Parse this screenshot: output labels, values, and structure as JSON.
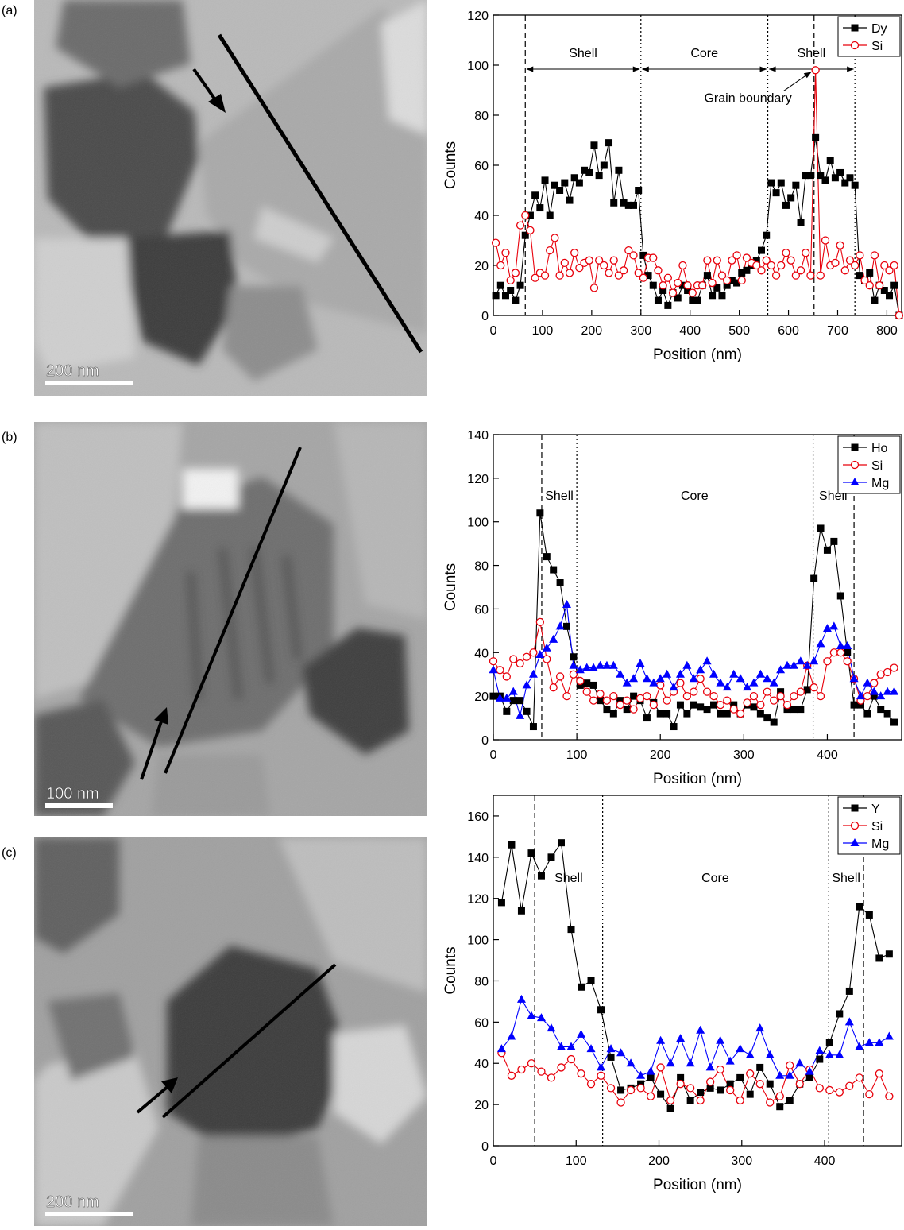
{
  "panel_labels": [
    "(a)",
    "(b)",
    "(c)"
  ],
  "scale_bars": [
    "200 nm",
    "100 nm",
    "200 nm"
  ],
  "chart_data": [
    {
      "type": "line",
      "xlabel": "Position (nm)",
      "ylabel": "Counts",
      "xlim": [
        0,
        830
      ],
      "ylim": [
        0,
        120
      ],
      "xticks": [
        0,
        100,
        200,
        300,
        400,
        500,
        600,
        700,
        800
      ],
      "yticks": [
        0,
        20,
        40,
        60,
        80,
        100,
        120
      ],
      "legend": "upper right",
      "x": [
        5,
        15,
        25,
        35,
        45,
        55,
        65,
        75,
        85,
        95,
        105,
        115,
        125,
        135,
        145,
        155,
        165,
        175,
        185,
        195,
        205,
        215,
        225,
        235,
        245,
        255,
        265,
        275,
        285,
        295,
        305,
        315,
        325,
        335,
        345,
        355,
        365,
        375,
        385,
        395,
        405,
        415,
        425,
        435,
        445,
        455,
        465,
        475,
        485,
        495,
        505,
        515,
        525,
        535,
        545,
        555,
        565,
        575,
        585,
        595,
        605,
        615,
        625,
        635,
        645,
        655,
        665,
        675,
        685,
        695,
        705,
        715,
        725,
        735,
        745,
        755,
        765,
        775,
        785,
        795,
        805,
        815,
        825
      ],
      "series": [
        {
          "name": "Dy",
          "color": "#000000",
          "marker": "square",
          "values": [
            8,
            12,
            8,
            10,
            6,
            12,
            32,
            40,
            48,
            43,
            54,
            40,
            52,
            50,
            53,
            46,
            55,
            53,
            58,
            57,
            68,
            56,
            60,
            69,
            45,
            58,
            45,
            44,
            44,
            50,
            24,
            16,
            12,
            6,
            10,
            4,
            9,
            7,
            12,
            10,
            6,
            6,
            12,
            16,
            8,
            11,
            8,
            12,
            14,
            13,
            17,
            18,
            20,
            22,
            26,
            32,
            53,
            49,
            53,
            44,
            47,
            52,
            37,
            56,
            56,
            71,
            56,
            54,
            62,
            55,
            57,
            53,
            55,
            52,
            16,
            14,
            17,
            6,
            12,
            10,
            8,
            12,
            0
          ]
        },
        {
          "name": "Si",
          "color": "#e8000b",
          "marker": "circle-open",
          "values": [
            29,
            20,
            25,
            14,
            17,
            36,
            40,
            34,
            15,
            17,
            16,
            26,
            31,
            16,
            21,
            17,
            25,
            19,
            21,
            22,
            11,
            22,
            20,
            17,
            22,
            16,
            18,
            26,
            24,
            17,
            15,
            23,
            23,
            18,
            12,
            15,
            9,
            13,
            20,
            12,
            9,
            12,
            12,
            22,
            13,
            22,
            16,
            14,
            22,
            24,
            14,
            23,
            21,
            20,
            18,
            22,
            20,
            16,
            20,
            25,
            22,
            16,
            18,
            25,
            16,
            98,
            16,
            30,
            20,
            21,
            28,
            18,
            22,
            20,
            24,
            14,
            12,
            24,
            12,
            20,
            18,
            20,
            0
          ]
        }
      ],
      "vlines": [
        {
          "x": 65,
          "style": "dashed"
        },
        {
          "x": 300,
          "style": "dotted"
        },
        {
          "x": 558,
          "style": "dotted"
        },
        {
          "x": 652,
          "style": "dashed"
        },
        {
          "x": 735,
          "style": "dotted"
        }
      ],
      "regions": [
        {
          "label": "Shell",
          "from": 65,
          "to": 300
        },
        {
          "label": "Core",
          "from": 300,
          "to": 558
        },
        {
          "label": "Shell",
          "from": 558,
          "to": 735
        }
      ],
      "annotation": {
        "text": "Grain boundary",
        "x": 652,
        "y": 98
      }
    },
    {
      "type": "line",
      "xlabel": "Position (nm)",
      "ylabel": "Counts",
      "xlim": [
        0,
        489
      ],
      "ylim": [
        0,
        140
      ],
      "xticks": [
        0,
        100,
        200,
        300,
        400
      ],
      "yticks": [
        0,
        20,
        40,
        60,
        80,
        100,
        120,
        140
      ],
      "legend": "upper right",
      "x": [
        0,
        8,
        16,
        24,
        32,
        40,
        48,
        56,
        64,
        72,
        80,
        88,
        96,
        104,
        112,
        120,
        128,
        136,
        144,
        152,
        160,
        168,
        176,
        184,
        192,
        200,
        208,
        216,
        224,
        232,
        240,
        248,
        256,
        264,
        272,
        280,
        288,
        296,
        304,
        312,
        320,
        328,
        336,
        344,
        352,
        360,
        368,
        376,
        384,
        392,
        400,
        408,
        416,
        424,
        432,
        440,
        448,
        456,
        464,
        472,
        480
      ],
      "series": [
        {
          "name": "Ho",
          "color": "#000000",
          "marker": "square",
          "values": [
            20,
            20,
            13,
            18,
            18,
            13,
            6,
            104,
            84,
            78,
            72,
            52,
            38,
            25,
            26,
            25,
            18,
            14,
            12,
            18,
            14,
            20,
            18,
            10,
            17,
            12,
            12,
            6,
            16,
            12,
            16,
            15,
            14,
            16,
            12,
            12,
            16,
            12,
            16,
            15,
            12,
            10,
            8,
            22,
            14,
            14,
            14,
            23,
            74,
            97,
            87,
            91,
            66,
            40,
            16,
            16,
            12,
            20,
            14,
            12,
            8
          ]
        },
        {
          "name": "Si",
          "color": "#e8000b",
          "marker": "circle-open",
          "values": [
            36,
            32,
            29,
            37,
            35,
            38,
            40,
            54,
            37,
            24,
            29,
            20,
            30,
            27,
            22,
            18,
            21,
            18,
            20,
            16,
            18,
            14,
            19,
            20,
            16,
            25,
            18,
            22,
            26,
            20,
            22,
            28,
            22,
            20,
            16,
            18,
            14,
            12,
            17,
            20,
            16,
            22,
            18,
            20,
            16,
            20,
            22,
            34,
            24,
            20,
            36,
            40,
            40,
            36,
            28,
            18,
            20,
            26,
            30,
            31,
            33
          ]
        },
        {
          "name": "Mg",
          "color": "#0000ff",
          "marker": "triangle",
          "values": [
            32,
            19,
            19,
            22,
            11,
            25,
            30,
            39,
            42,
            46,
            52,
            62,
            34,
            32,
            33,
            33,
            34,
            34,
            34,
            30,
            26,
            28,
            35,
            28,
            26,
            28,
            30,
            24,
            30,
            34,
            28,
            32,
            36,
            30,
            26,
            24,
            30,
            28,
            24,
            26,
            30,
            28,
            26,
            32,
            34,
            34,
            36,
            34,
            36,
            44,
            51,
            52,
            43,
            43,
            28,
            20,
            26,
            22,
            20,
            22,
            22
          ]
        }
      ],
      "vlines": [
        {
          "x": 58,
          "style": "dashed"
        },
        {
          "x": 100,
          "style": "dotted"
        },
        {
          "x": 383,
          "style": "dotted"
        },
        {
          "x": 432,
          "style": "dashed"
        }
      ],
      "regions": [
        {
          "label": "Shell",
          "x": 79
        },
        {
          "label": "Core",
          "x": 241
        },
        {
          "label": "Shell",
          "x": 407
        }
      ]
    },
    {
      "type": "line",
      "xlabel": "Position (nm)",
      "ylabel": "Counts",
      "xlim": [
        0,
        493
      ],
      "ylim": [
        0,
        170
      ],
      "xticks": [
        0,
        100,
        200,
        300,
        400
      ],
      "yticks": [
        0,
        20,
        40,
        60,
        80,
        100,
        120,
        140,
        160
      ],
      "legend": "upper right",
      "x": [
        10,
        22,
        34,
        46,
        58,
        70,
        82,
        94,
        106,
        118,
        130,
        142,
        154,
        166,
        178,
        190,
        202,
        214,
        226,
        238,
        250,
        262,
        274,
        286,
        298,
        310,
        322,
        334,
        346,
        358,
        370,
        382,
        394,
        406,
        418,
        430,
        442,
        454,
        466,
        478
      ],
      "series": [
        {
          "name": "Y",
          "color": "#000000",
          "marker": "square",
          "values": [
            118,
            146,
            114,
            142,
            131,
            140,
            147,
            105,
            77,
            80,
            66,
            43,
            27,
            28,
            30,
            33,
            25,
            18,
            33,
            22,
            26,
            28,
            27,
            30,
            33,
            25,
            38,
            30,
            19,
            22,
            30,
            33,
            42,
            50,
            64,
            75,
            116,
            112,
            91,
            93
          ]
        },
        {
          "name": "Si",
          "color": "#e8000b",
          "marker": "circle-open",
          "values": [
            45,
            34,
            37,
            40,
            36,
            33,
            38,
            42,
            35,
            30,
            34,
            28,
            21,
            27,
            28,
            24,
            38,
            22,
            30,
            28,
            22,
            31,
            37,
            27,
            22,
            35,
            30,
            21,
            24,
            39,
            30,
            37,
            28,
            27,
            26,
            29,
            33,
            25,
            35,
            24
          ]
        },
        {
          "name": "Mg",
          "color": "#0000ff",
          "marker": "triangle",
          "values": [
            47,
            53,
            71,
            63,
            62,
            57,
            48,
            48,
            54,
            47,
            38,
            47,
            45,
            40,
            34,
            36,
            51,
            40,
            52,
            40,
            56,
            38,
            51,
            41,
            47,
            44,
            57,
            44,
            34,
            34,
            40,
            36,
            46,
            44,
            44,
            60,
            48,
            50,
            50,
            53
          ]
        }
      ],
      "vlines": [
        {
          "x": 50,
          "style": "dashed"
        },
        {
          "x": 132,
          "style": "dotted"
        },
        {
          "x": 405,
          "style": "dotted"
        },
        {
          "x": 447,
          "style": "dashed"
        }
      ],
      "regions": [
        {
          "label": "Shell",
          "x": 91
        },
        {
          "label": "Core",
          "x": 268
        },
        {
          "label": "Shell",
          "x": 426
        }
      ]
    }
  ]
}
